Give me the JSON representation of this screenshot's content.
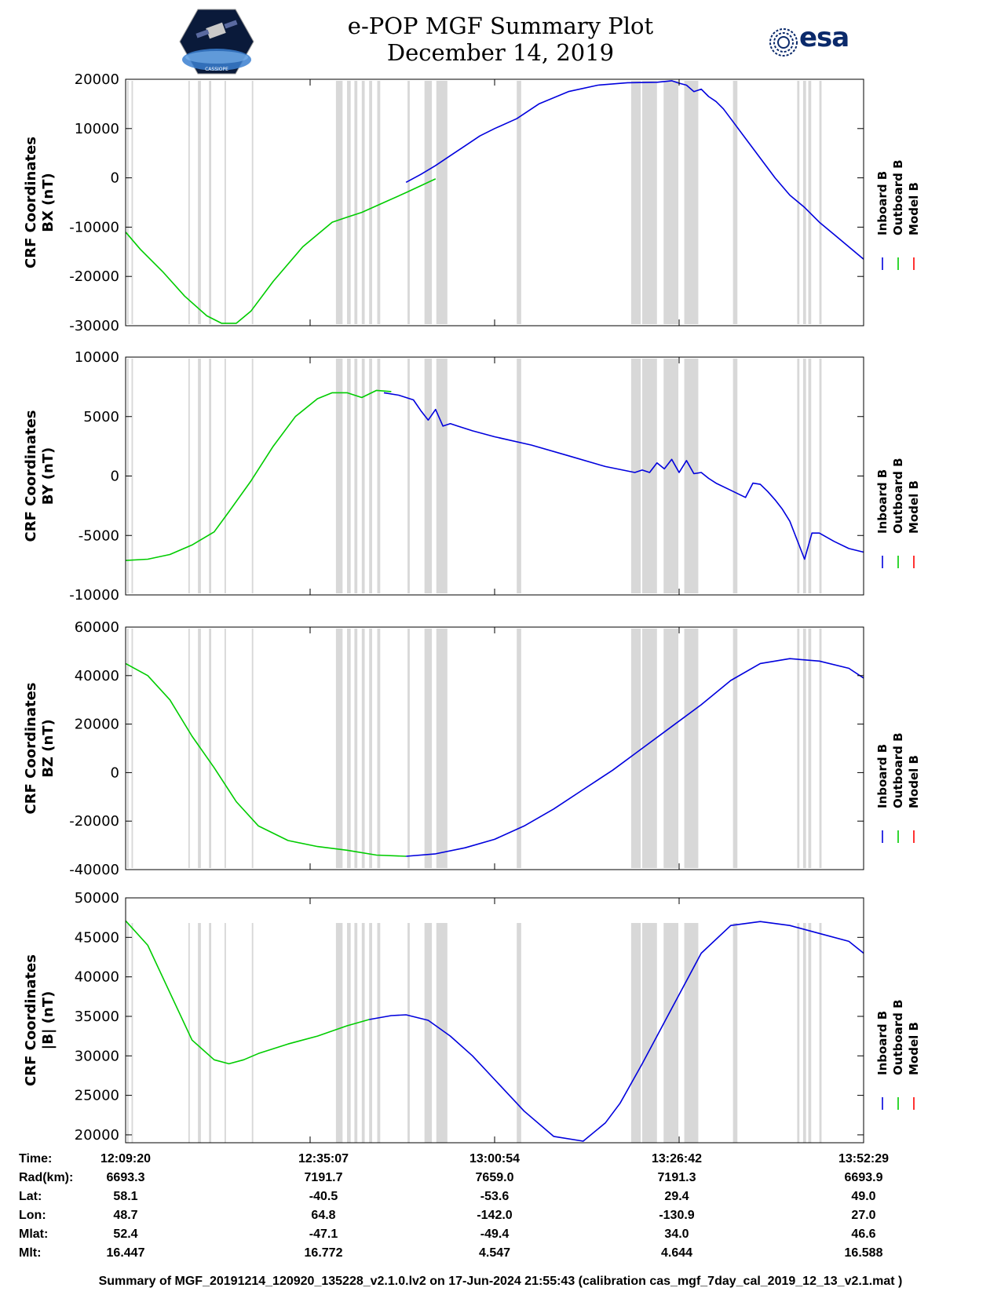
{
  "header": {
    "title_line1": "e-POP MGF Summary Plot",
    "title_line2": "December 14, 2019",
    "logo_left_text": "CASSIOPE",
    "logo_right_text": "esa"
  },
  "colors": {
    "inboard": "#0000dd",
    "outboard": "#00cc00",
    "model": "#ff0000",
    "gap": "#d8d8d8"
  },
  "legend": [
    "Inboard B",
    "Outboard B",
    "Model B"
  ],
  "chart_data": [
    {
      "type": "line",
      "ylabel_line1": "CRF Coordinates",
      "ylabel_line2": "BX (nT)",
      "ylim": [
        -30000,
        20000
      ],
      "yticks": [
        20000,
        10000,
        0,
        -10000,
        -20000,
        -30000
      ],
      "ytick_labels": [
        "20000",
        "10000",
        "0",
        "-10000",
        "-20000",
        "-30000"
      ],
      "xlim": [
        0,
        100
      ],
      "series": [
        {
          "name": "Outboard B",
          "color": "#00cc00",
          "x": [
            0,
            2,
            5,
            8,
            11,
            13,
            15,
            17,
            20,
            24,
            28,
            30,
            32,
            35,
            38,
            42
          ],
          "y": [
            -11000,
            -14500,
            -19000,
            -24000,
            -28000,
            -29500,
            -29500,
            -27000,
            -21000,
            -14000,
            -9000,
            -8000,
            -7000,
            -5000,
            -3000,
            -200
          ]
        },
        {
          "name": "Inboard B",
          "color": "#0000dd",
          "x": [
            38,
            40,
            42,
            44,
            46,
            48,
            50,
            53,
            56,
            60,
            64,
            68,
            72,
            74,
            75,
            76,
            77,
            78,
            79,
            80,
            81,
            82,
            84,
            86,
            88,
            90,
            92,
            94,
            96,
            98,
            100
          ],
          "y": [
            -900,
            700,
            2500,
            4500,
            6500,
            8500,
            10000,
            12000,
            15000,
            17500,
            18800,
            19300,
            19400,
            19700,
            19200,
            18800,
            17500,
            18000,
            16500,
            15500,
            14000,
            12000,
            8000,
            4000,
            0,
            -3500,
            -6000,
            -9000,
            -11500,
            -14000,
            -16500
          ]
        },
        {
          "name": "Model B",
          "color": "#ff0000",
          "x": [],
          "y": []
        }
      ]
    },
    {
      "type": "line",
      "ylabel_line1": "CRF Coordinates",
      "ylabel_line2": "BY (nT)",
      "ylim": [
        -10000,
        10000
      ],
      "yticks": [
        10000,
        5000,
        0,
        -5000,
        -10000
      ],
      "ytick_labels": [
        "10000",
        "5000",
        "0",
        "-5000",
        "-10000"
      ],
      "xlim": [
        0,
        100
      ],
      "series": [
        {
          "name": "Outboard B",
          "color": "#00cc00",
          "x": [
            0,
            3,
            6,
            9,
            12,
            14,
            17,
            20,
            23,
            26,
            28,
            30,
            32,
            34,
            36
          ],
          "y": [
            -7100,
            -7000,
            -6600,
            -5800,
            -4700,
            -3000,
            -400,
            2500,
            5000,
            6500,
            7000,
            7000,
            6600,
            7200,
            7100
          ]
        },
        {
          "name": "Inboard B",
          "color": "#0000dd",
          "x": [
            35,
            37,
            39,
            40,
            41,
            42,
            43,
            44,
            45,
            47,
            50,
            55,
            60,
            65,
            69,
            70,
            71,
            72,
            73,
            74,
            75,
            76,
            77,
            78,
            79,
            80,
            82,
            84,
            85,
            86,
            87,
            88,
            89,
            90,
            92,
            93,
            94,
            96,
            98,
            100
          ],
          "y": [
            7000,
            6800,
            6400,
            5500,
            4700,
            5600,
            4200,
            4400,
            4200,
            3800,
            3300,
            2600,
            1700,
            800,
            300,
            500,
            300,
            1100,
            600,
            1400,
            300,
            1300,
            200,
            300,
            -200,
            -600,
            -1200,
            -1800,
            -600,
            -700,
            -1300,
            -2000,
            -2800,
            -3800,
            -7000,
            -4800,
            -4800,
            -5500,
            -6100,
            -6400
          ]
        },
        {
          "name": "Model B",
          "color": "#ff0000",
          "x": [],
          "y": []
        }
      ]
    },
    {
      "type": "line",
      "ylabel_line1": "CRF Coordinates",
      "ylabel_line2": "BZ (nT)",
      "ylim": [
        -40000,
        60000
      ],
      "yticks": [
        60000,
        40000,
        20000,
        0,
        -20000,
        -40000
      ],
      "ytick_labels": [
        "60000",
        "40000",
        "20000",
        "0",
        "-20000",
        "-40000"
      ],
      "xlim": [
        0,
        100
      ],
      "series": [
        {
          "name": "Outboard B",
          "color": "#00cc00",
          "x": [
            0,
            3,
            6,
            9,
            12,
            15,
            18,
            22,
            26,
            30,
            34,
            38
          ],
          "y": [
            45000,
            40000,
            30000,
            15000,
            2000,
            -12000,
            -22000,
            -28000,
            -30500,
            -32000,
            -34000,
            -34500
          ]
        },
        {
          "name": "Inboard B",
          "color": "#0000dd",
          "x": [
            38,
            42,
            46,
            50,
            54,
            58,
            62,
            66,
            70,
            74,
            78,
            82,
            86,
            90,
            94,
            98,
            100
          ],
          "y": [
            -34500,
            -33500,
            -31000,
            -27500,
            -22000,
            -15000,
            -7000,
            1000,
            10000,
            19000,
            28000,
            38000,
            45000,
            47000,
            46000,
            43000,
            39000
          ]
        },
        {
          "name": "Model B",
          "color": "#ff0000",
          "x": [],
          "y": []
        }
      ]
    },
    {
      "type": "line",
      "ylabel_line1": "CRF Coordinates",
      "ylabel_line2": "|B| (nT)",
      "ylim": [
        19000,
        50000
      ],
      "yticks": [
        50000,
        45000,
        40000,
        35000,
        30000,
        25000,
        20000
      ],
      "ytick_labels": [
        "50000",
        "45000",
        "40000",
        "35000",
        "30000",
        "25000",
        "20000"
      ],
      "xlim": [
        0,
        100
      ],
      "series": [
        {
          "name": "Outboard B",
          "color": "#00cc00",
          "x": [
            0,
            3,
            6,
            9,
            12,
            14,
            16,
            18,
            22,
            26,
            30,
            33
          ],
          "y": [
            47100,
            44000,
            38000,
            32000,
            29500,
            29000,
            29500,
            30300,
            31500,
            32500,
            33800,
            34600
          ]
        },
        {
          "name": "Inboard B",
          "color": "#0000dd",
          "x": [
            33,
            36,
            38,
            41,
            44,
            47,
            50,
            54,
            58,
            62,
            65,
            67,
            70,
            74,
            78,
            82,
            86,
            90,
            94,
            98,
            100
          ],
          "y": [
            34600,
            35100,
            35200,
            34500,
            32500,
            30000,
            27000,
            23000,
            19800,
            19200,
            21500,
            24000,
            29000,
            36000,
            43000,
            46500,
            47000,
            46500,
            45500,
            44500,
            43000
          ]
        },
        {
          "name": "Model B",
          "color": "#ff0000",
          "x": [],
          "y": []
        }
      ]
    }
  ],
  "gap_intervals": [
    [
      0.2,
      0.4
    ],
    [
      0.8,
      1.0
    ],
    [
      8.5,
      8.7
    ],
    [
      9.8,
      10.2
    ],
    [
      11.3,
      11.6
    ],
    [
      13.4,
      13.6
    ],
    [
      17.1,
      17.3
    ],
    [
      28.5,
      29.4
    ],
    [
      30.0,
      30.5
    ],
    [
      31.0,
      31.4
    ],
    [
      32.0,
      32.4
    ],
    [
      33.0,
      33.4
    ],
    [
      34.1,
      34.5
    ],
    [
      38.2,
      38.5
    ],
    [
      40.5,
      41.5
    ],
    [
      42.1,
      43.6
    ],
    [
      53.0,
      53.6
    ],
    [
      68.5,
      69.8
    ],
    [
      70.0,
      72.0
    ],
    [
      72.9,
      74.9
    ],
    [
      75.7,
      77.6
    ],
    [
      82.3,
      82.9
    ],
    [
      91.0,
      91.3
    ],
    [
      91.8,
      92.2
    ],
    [
      92.5,
      92.9
    ],
    [
      94.0,
      94.3
    ]
  ],
  "info_table": {
    "labels": [
      "Time:",
      "Rad(km):",
      "Lat:",
      "Lon:",
      "Mlat:",
      "Mlt:"
    ],
    "columns": [
      [
        "12:09:20",
        "6693.3",
        "58.1",
        "48.7",
        "52.4",
        "16.447"
      ],
      [
        "12:35:07",
        "7191.7",
        "-40.5",
        "64.8",
        "-47.1",
        "16.772"
      ],
      [
        "13:00:54",
        "7659.0",
        "-53.6",
        "-142.0",
        "-49.4",
        "4.547"
      ],
      [
        "13:26:42",
        "7191.3",
        "29.4",
        "-130.9",
        "34.0",
        "4.644"
      ],
      [
        "13:52:29",
        "6693.9",
        "49.0",
        "27.0",
        "46.6",
        "16.588"
      ]
    ]
  },
  "footer": "Summary of MGF_20191214_120920_135228_v2.1.0.lv2 on 17-Jun-2024 21:55:43 (calibration cas_mgf_7day_cal_2019_12_13_v2.1.mat )"
}
